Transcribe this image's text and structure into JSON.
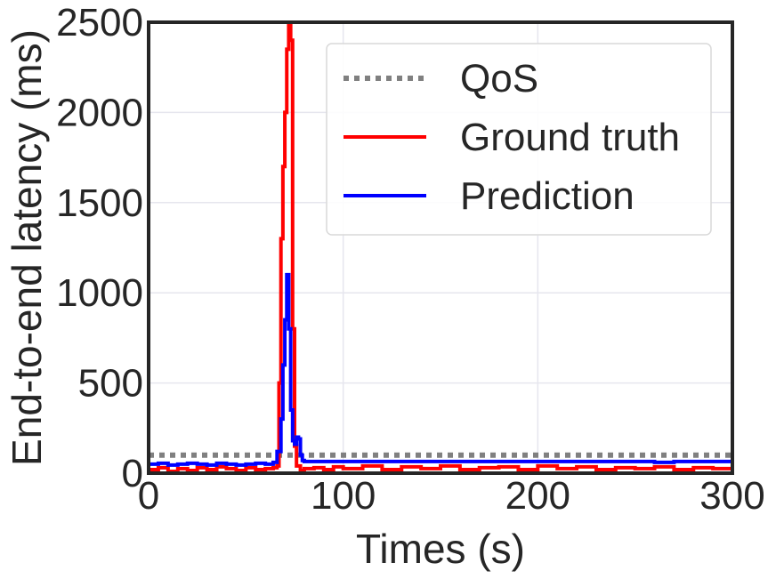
{
  "chart_data": {
    "type": "line",
    "title": "",
    "xlabel": "Times (s)",
    "ylabel": "End-to-end latency (ms)",
    "xlim": [
      0,
      300
    ],
    "ylim": [
      0,
      2500
    ],
    "xticks": [
      "0",
      "100",
      "200",
      "300"
    ],
    "xtick_values": [
      0,
      100,
      200,
      300
    ],
    "yticks": [
      "0",
      "500",
      "1000",
      "1500",
      "2000",
      "2500"
    ],
    "ytick_values": [
      0,
      500,
      1000,
      1500,
      2000,
      2500
    ],
    "grid": true,
    "legend_position": "upper-right",
    "series": [
      {
        "name": "QoS",
        "color": "#808080",
        "style": "dotted",
        "x": [
          0,
          300
        ],
        "y": [
          100,
          100
        ]
      },
      {
        "name": "Ground truth",
        "color": "#ff0000",
        "style": "solid",
        "x": [
          0,
          5,
          10,
          15,
          20,
          25,
          30,
          35,
          40,
          45,
          50,
          55,
          60,
          64,
          66,
          67,
          68,
          69,
          70,
          71,
          72,
          73,
          74,
          75,
          76,
          78,
          80,
          85,
          90,
          95,
          100,
          110,
          120,
          130,
          140,
          150,
          160,
          170,
          180,
          190,
          200,
          210,
          220,
          230,
          240,
          250,
          260,
          270,
          280,
          290,
          300
        ],
        "y": [
          20,
          30,
          10,
          25,
          15,
          30,
          20,
          35,
          25,
          15,
          30,
          20,
          25,
          30,
          40,
          500,
          1300,
          1700,
          2000,
          2350,
          2500,
          2400,
          800,
          150,
          40,
          15,
          25,
          30,
          20,
          35,
          25,
          40,
          20,
          35,
          25,
          40,
          20,
          30,
          35,
          20,
          40,
          25,
          35,
          20,
          30,
          25,
          35,
          20,
          30,
          25,
          30
        ]
      },
      {
        "name": "Prediction",
        "color": "#0000ff",
        "style": "solid",
        "x": [
          0,
          5,
          10,
          15,
          20,
          25,
          30,
          35,
          40,
          45,
          50,
          55,
          60,
          64,
          66,
          68,
          69,
          70,
          71,
          72,
          73,
          74,
          75,
          76,
          77,
          78,
          79,
          80,
          85,
          90,
          100,
          110,
          120,
          130,
          140,
          150,
          160,
          170,
          180,
          190,
          200,
          210,
          220,
          230,
          240,
          250,
          260,
          270,
          280,
          290,
          300
        ],
        "y": [
          50,
          55,
          45,
          50,
          55,
          50,
          45,
          55,
          50,
          45,
          50,
          55,
          50,
          60,
          120,
          300,
          600,
          850,
          1100,
          800,
          350,
          180,
          160,
          200,
          190,
          100,
          70,
          65,
          65,
          65,
          65,
          65,
          65,
          65,
          65,
          65,
          65,
          65,
          65,
          65,
          65,
          65,
          65,
          65,
          65,
          65,
          60,
          65,
          65,
          65,
          65
        ]
      }
    ]
  }
}
